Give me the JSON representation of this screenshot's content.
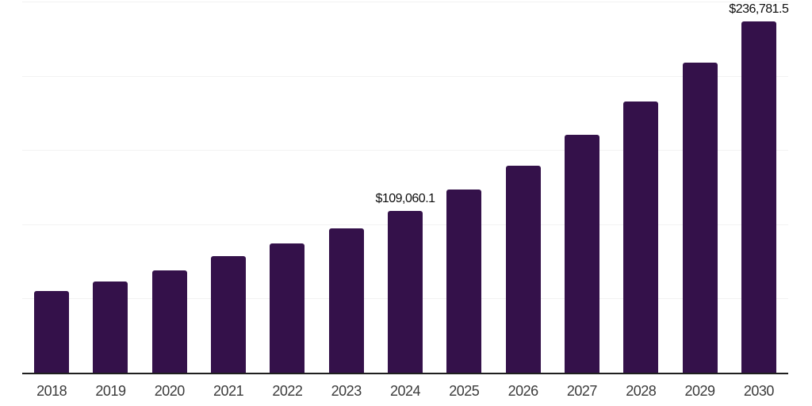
{
  "chart_data": {
    "type": "bar",
    "title": "",
    "xlabel": "",
    "ylabel": "",
    "categories": [
      "2018",
      "2019",
      "2020",
      "2021",
      "2022",
      "2023",
      "2024",
      "2025",
      "2026",
      "2027",
      "2028",
      "2029",
      "2030"
    ],
    "values": [
      55300,
      61300,
      69200,
      78600,
      87200,
      97500,
      109060.1,
      123500,
      139500,
      160500,
      182900,
      208900,
      236781.5
    ],
    "value_labels": [
      {
        "category": "2024",
        "text": "$109,060.1"
      },
      {
        "category": "2030",
        "text": "$236,781.5"
      }
    ],
    "ylim": [
      0,
      250000
    ],
    "gridline_values": [
      50000,
      100000,
      150000,
      200000,
      250000
    ],
    "grid": "horizontal",
    "legend_position": "none",
    "colors": {
      "bar": "#34114a",
      "background": "#ffffff",
      "gridline": "#f2f2f2",
      "axis_line": "#1f1f1f",
      "x_tick_text": "#3a3a3a",
      "value_label_text": "#0d0d0d"
    }
  }
}
